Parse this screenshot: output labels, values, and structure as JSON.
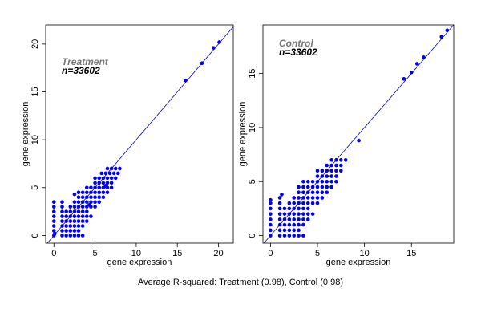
{
  "caption": "Average R-squared: Treatment (0.98), Control (0.98)",
  "colors": {
    "points": "#0000ee",
    "line": "#0000cc",
    "frame": "#000000",
    "annotation_gray": "#777777",
    "annotation_black": "#000000"
  },
  "chart_data": [
    {
      "type": "scatter",
      "xlabel": "gene expression",
      "ylabel": "gene expression",
      "xlim": [
        -1,
        21.8
      ],
      "ylim": [
        -0.8,
        22
      ],
      "xticks": [
        0,
        5,
        10,
        15,
        20
      ],
      "yticks": [
        0,
        5,
        10,
        15,
        20
      ],
      "annotations": [
        "Treatment",
        "n=33602"
      ],
      "reference_line": "y = x",
      "points": [
        [
          0,
          0
        ],
        [
          0,
          0.5
        ],
        [
          0,
          1
        ],
        [
          0,
          1.5
        ],
        [
          0,
          2
        ],
        [
          0,
          2.5
        ],
        [
          0,
          3
        ],
        [
          0,
          3.5
        ],
        [
          0.1,
          0.2
        ],
        [
          1,
          0
        ],
        [
          1,
          0.5
        ],
        [
          1,
          1
        ],
        [
          1,
          1.5
        ],
        [
          1,
          2
        ],
        [
          1,
          2.5
        ],
        [
          1,
          3
        ],
        [
          1,
          3.5
        ],
        [
          1.5,
          0
        ],
        [
          2,
          0
        ],
        [
          2.5,
          0
        ],
        [
          3,
          0
        ],
        [
          3.5,
          0
        ],
        [
          1.5,
          0.5
        ],
        [
          2,
          0.5
        ],
        [
          2.5,
          0.5
        ],
        [
          3,
          0.5
        ],
        [
          1.5,
          1
        ],
        [
          2,
          1
        ],
        [
          2.5,
          1
        ],
        [
          3,
          1
        ],
        [
          3.5,
          1
        ],
        [
          1.5,
          1.5
        ],
        [
          2,
          1.5
        ],
        [
          2.5,
          1.5
        ],
        [
          3,
          1.5
        ],
        [
          3.5,
          1.5
        ],
        [
          4,
          1.5
        ],
        [
          1.5,
          2
        ],
        [
          2,
          2
        ],
        [
          2.5,
          2
        ],
        [
          3,
          2
        ],
        [
          3.5,
          2
        ],
        [
          4,
          2
        ],
        [
          4.5,
          2
        ],
        [
          1.5,
          2.5
        ],
        [
          2,
          2.5
        ],
        [
          2.5,
          2.5
        ],
        [
          3,
          2.5
        ],
        [
          3.5,
          2.5
        ],
        [
          4,
          2.5
        ],
        [
          2,
          3
        ],
        [
          2.5,
          3
        ],
        [
          3,
          3
        ],
        [
          3.5,
          3
        ],
        [
          4,
          3
        ],
        [
          4.5,
          3
        ],
        [
          5,
          3
        ],
        [
          2.5,
          3.5
        ],
        [
          3,
          3.5
        ],
        [
          3.5,
          3.5
        ],
        [
          4,
          3.5
        ],
        [
          4.5,
          3.5
        ],
        [
          5,
          3.5
        ],
        [
          5.5,
          3.5
        ],
        [
          3,
          4
        ],
        [
          3.5,
          4
        ],
        [
          4,
          4
        ],
        [
          4.5,
          4
        ],
        [
          5,
          4
        ],
        [
          5.5,
          4
        ],
        [
          6,
          4
        ],
        [
          3,
          4.5
        ],
        [
          3.5,
          4.5
        ],
        [
          4,
          4.5
        ],
        [
          4.5,
          4.5
        ],
        [
          5,
          4.5
        ],
        [
          5.5,
          4.5
        ],
        [
          6,
          4.5
        ],
        [
          6.5,
          4.5
        ],
        [
          2.5,
          4.3
        ],
        [
          4,
          5
        ],
        [
          4.5,
          5
        ],
        [
          5,
          5
        ],
        [
          5.5,
          5
        ],
        [
          6,
          5
        ],
        [
          6.5,
          5
        ],
        [
          7,
          5
        ],
        [
          5,
          5.5
        ],
        [
          5.5,
          5.5
        ],
        [
          6,
          5.5
        ],
        [
          6.5,
          5.5
        ],
        [
          7,
          5.5
        ],
        [
          5,
          6
        ],
        [
          5.5,
          6
        ],
        [
          6,
          6
        ],
        [
          6.5,
          6
        ],
        [
          7,
          6
        ],
        [
          7.5,
          6
        ],
        [
          5.8,
          6.5
        ],
        [
          6.3,
          6.5
        ],
        [
          6.8,
          6.5
        ],
        [
          7.3,
          6.5
        ],
        [
          7.8,
          6.5
        ],
        [
          6.5,
          7
        ],
        [
          7,
          7
        ],
        [
          7.5,
          7
        ],
        [
          8,
          7
        ],
        [
          6.3,
          5.2
        ],
        [
          4.3,
          3.2
        ],
        [
          6.4,
          5.1
        ],
        [
          16,
          16.2
        ],
        [
          18,
          18
        ],
        [
          19.4,
          19.6
        ],
        [
          20.1,
          20.2
        ]
      ]
    },
    {
      "type": "scatter",
      "xlabel": "gene expression",
      "ylabel": "gene expression",
      "xlim": [
        -0.8,
        19.5
      ],
      "ylim": [
        -0.7,
        19.5
      ],
      "xticks": [
        0,
        5,
        10,
        15
      ],
      "yticks": [
        0,
        5,
        10,
        15
      ],
      "annotations": [
        "Control",
        "n=33602"
      ],
      "reference_line": "y = x",
      "points": [
        [
          0,
          0
        ],
        [
          0,
          0.5
        ],
        [
          0,
          1
        ],
        [
          0,
          1.5
        ],
        [
          0,
          2
        ],
        [
          0,
          2.5
        ],
        [
          0,
          3
        ],
        [
          0,
          3.3
        ],
        [
          1,
          0
        ],
        [
          1,
          0.5
        ],
        [
          1,
          1
        ],
        [
          1,
          1.5
        ],
        [
          1,
          2
        ],
        [
          1,
          2.5
        ],
        [
          1,
          3
        ],
        [
          1,
          3.5
        ],
        [
          1.2,
          3.8
        ],
        [
          1.5,
          0
        ],
        [
          2,
          0
        ],
        [
          2.5,
          0
        ],
        [
          3,
          0
        ],
        [
          3.5,
          0
        ],
        [
          1.5,
          0.5
        ],
        [
          2,
          0.5
        ],
        [
          2.5,
          0.5
        ],
        [
          3,
          0.5
        ],
        [
          1.5,
          1
        ],
        [
          2,
          1
        ],
        [
          2.5,
          1
        ],
        [
          3,
          1
        ],
        [
          3.5,
          1
        ],
        [
          1.5,
          1.5
        ],
        [
          2,
          1.5
        ],
        [
          2.5,
          1.5
        ],
        [
          3,
          1.5
        ],
        [
          3.5,
          1.5
        ],
        [
          4,
          1.5
        ],
        [
          1.5,
          2
        ],
        [
          2,
          2
        ],
        [
          2.5,
          2
        ],
        [
          3,
          2
        ],
        [
          3.5,
          2
        ],
        [
          4,
          2
        ],
        [
          4.5,
          2
        ],
        [
          1.5,
          2.5
        ],
        [
          2,
          2.5
        ],
        [
          2.5,
          2.5
        ],
        [
          3,
          2.5
        ],
        [
          3.5,
          2.5
        ],
        [
          4,
          2.5
        ],
        [
          2,
          3
        ],
        [
          2.5,
          3
        ],
        [
          3,
          3
        ],
        [
          3.5,
          3
        ],
        [
          4,
          3
        ],
        [
          4.5,
          3
        ],
        [
          5,
          3
        ],
        [
          2.5,
          3.5
        ],
        [
          3,
          3.5
        ],
        [
          3.5,
          3.5
        ],
        [
          4,
          3.5
        ],
        [
          4.5,
          3.5
        ],
        [
          5,
          3.5
        ],
        [
          5.5,
          3.5
        ],
        [
          3,
          4
        ],
        [
          3.5,
          4
        ],
        [
          4,
          4
        ],
        [
          4.5,
          4
        ],
        [
          5,
          4
        ],
        [
          5.5,
          4
        ],
        [
          6,
          4
        ],
        [
          3,
          4.5
        ],
        [
          3.5,
          4.5
        ],
        [
          4,
          4.5
        ],
        [
          4.5,
          4.5
        ],
        [
          5,
          4.5
        ],
        [
          5.5,
          4.5
        ],
        [
          6,
          4.5
        ],
        [
          6.5,
          4.5
        ],
        [
          3.5,
          5
        ],
        [
          4,
          5
        ],
        [
          4.5,
          5
        ],
        [
          5,
          5
        ],
        [
          5.5,
          5
        ],
        [
          6,
          5
        ],
        [
          6.5,
          5
        ],
        [
          7,
          5
        ],
        [
          5,
          5.5
        ],
        [
          5.5,
          5.5
        ],
        [
          6,
          5.5
        ],
        [
          6.5,
          5.5
        ],
        [
          7,
          5.5
        ],
        [
          5,
          6
        ],
        [
          5.5,
          6
        ],
        [
          6,
          6
        ],
        [
          6.5,
          6
        ],
        [
          7,
          6
        ],
        [
          7.5,
          6
        ],
        [
          6,
          6.5
        ],
        [
          6.5,
          6.5
        ],
        [
          7,
          6.5
        ],
        [
          7.5,
          6.5
        ],
        [
          6.5,
          7
        ],
        [
          7,
          7
        ],
        [
          7.5,
          7
        ],
        [
          8,
          7
        ],
        [
          9.4,
          8.8
        ],
        [
          14.2,
          14.5
        ],
        [
          15,
          15.1
        ],
        [
          15.6,
          15.9
        ],
        [
          16.3,
          16.5
        ],
        [
          18.2,
          18.4
        ],
        [
          18.8,
          19
        ]
      ]
    }
  ]
}
